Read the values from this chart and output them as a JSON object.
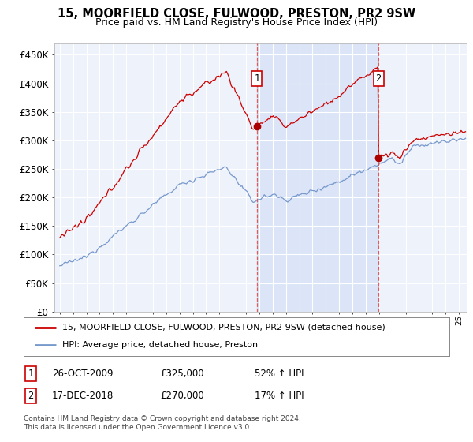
{
  "title": "15, MOORFIELD CLOSE, FULWOOD, PRESTON, PR2 9SW",
  "subtitle": "Price paid vs. HM Land Registry's House Price Index (HPI)",
  "ylim": [
    0,
    470000
  ],
  "yticks": [
    0,
    50000,
    100000,
    150000,
    200000,
    250000,
    300000,
    350000,
    400000,
    450000
  ],
  "ytick_labels": [
    "£0",
    "£50K",
    "£100K",
    "£150K",
    "£200K",
    "£250K",
    "£300K",
    "£350K",
    "£400K",
    "£450K"
  ],
  "background_color": "#ffffff",
  "plot_bg_color": "#eef2fa",
  "grid_color": "#ffffff",
  "shade_color": "#d0ddf5",
  "sale1_x": 2009.82,
  "sale1_price": 325000,
  "sale2_x": 2018.96,
  "sale2_price": 270000,
  "legend_line1": "15, MOORFIELD CLOSE, FULWOOD, PRESTON, PR2 9SW (detached house)",
  "legend_line2": "HPI: Average price, detached house, Preston",
  "footer": "Contains HM Land Registry data © Crown copyright and database right 2024.\nThis data is licensed under the Open Government Licence v3.0.",
  "line_color_red": "#cc0000",
  "line_color_blue": "#7799cc",
  "sale_dot_color": "#aa0000",
  "vline_color": "#dd4444",
  "annotation_box_color": "#cc0000",
  "sale1_date_str": "26-OCT-2009",
  "sale1_pct": "52% ↑ HPI",
  "sale2_date_str": "17-DEC-2018",
  "sale2_pct": "17% ↑ HPI",
  "sale1_amount": "£325,000",
  "sale2_amount": "£270,000",
  "label1": "1",
  "label2": "2"
}
